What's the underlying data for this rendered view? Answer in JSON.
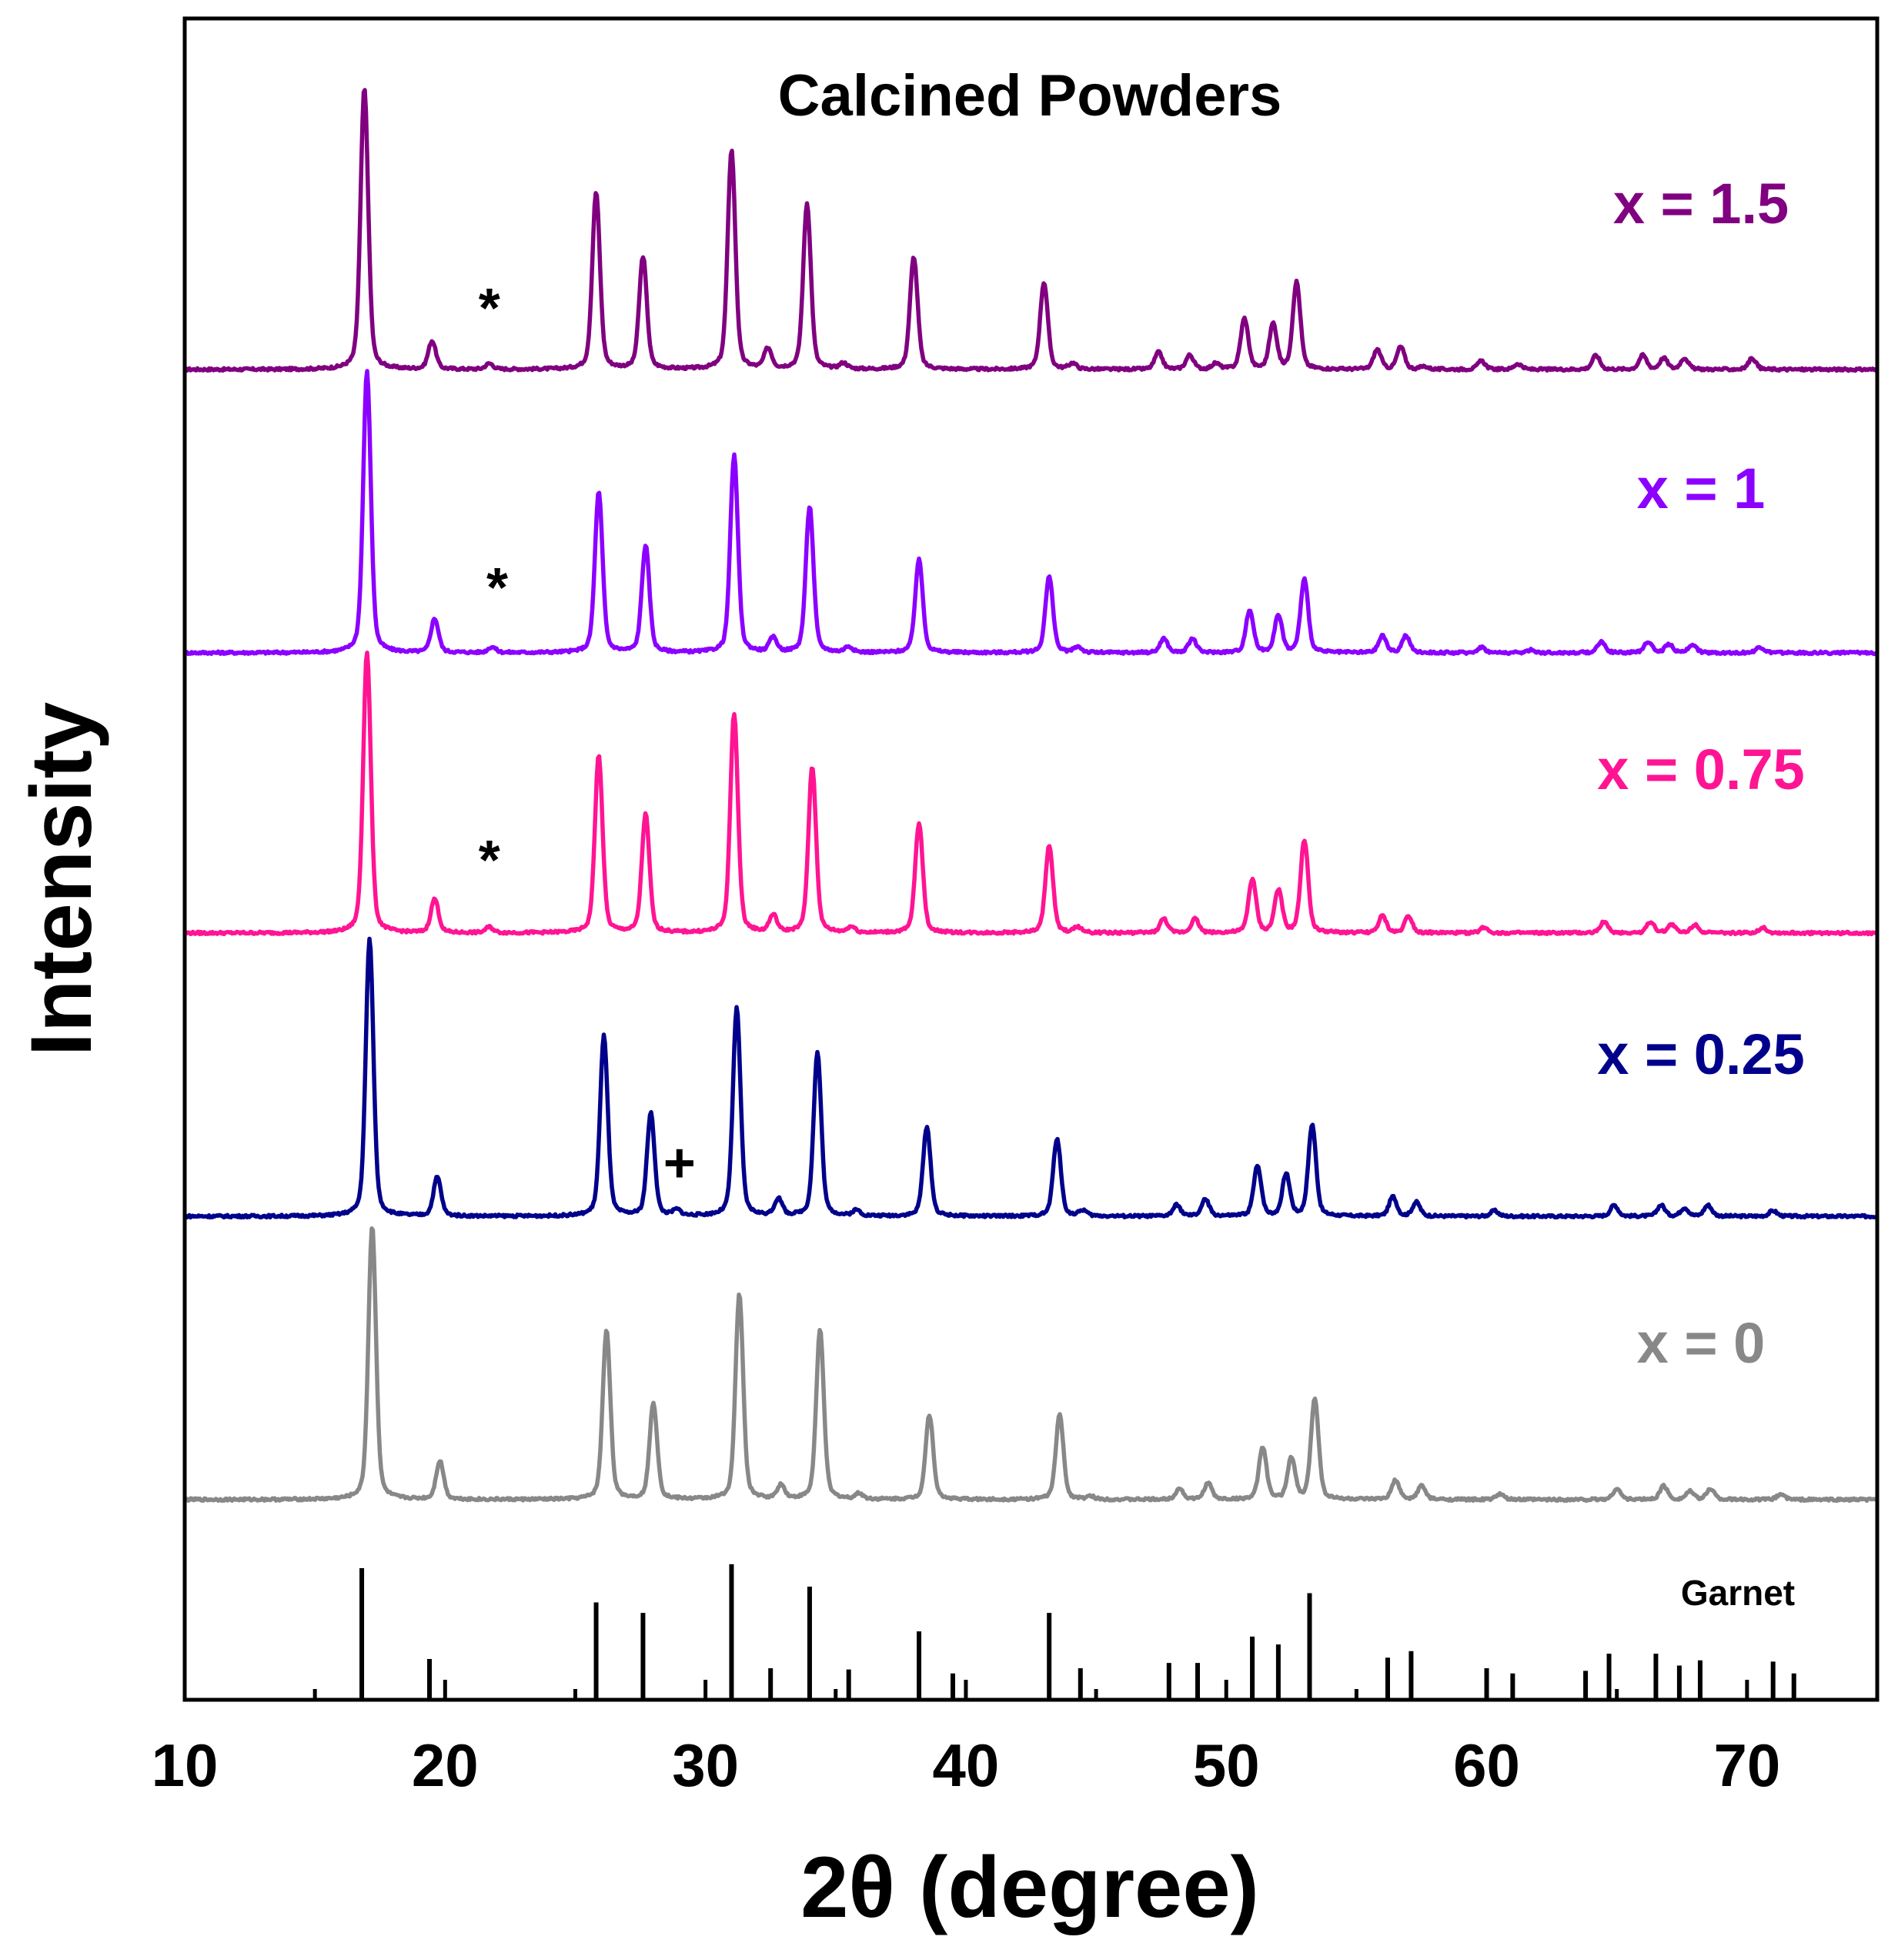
{
  "chart_data": {
    "type": "line",
    "title": "Calcined Powders",
    "xlabel": "2θ  (degree)",
    "ylabel": "Intensity",
    "xlim": [
      10,
      75
    ],
    "x_ticks": [
      10,
      20,
      30,
      40,
      50,
      60,
      70
    ],
    "x_minor_ticks": [
      15,
      25,
      35,
      45,
      55,
      65,
      75
    ],
    "series": [
      {
        "name": "x = 1.5",
        "color": "#800080",
        "marker": "*",
        "marker_x": 21.7,
        "peaks": [
          [
            16.9,
            100
          ],
          [
            19.5,
            10
          ],
          [
            21.7,
            2
          ],
          [
            25.8,
            63
          ],
          [
            27.6,
            40
          ],
          [
            31.0,
            78
          ],
          [
            32.4,
            7
          ],
          [
            33.9,
            59
          ],
          [
            35.3,
            2
          ],
          [
            38.0,
            40
          ],
          [
            43.0,
            31
          ],
          [
            44.1,
            2
          ],
          [
            47.4,
            6
          ],
          [
            48.6,
            5
          ],
          [
            49.6,
            2
          ],
          [
            50.7,
            18
          ],
          [
            51.8,
            16
          ],
          [
            52.7,
            31
          ],
          [
            55.8,
            7
          ],
          [
            56.7,
            8
          ],
          [
            57.6,
            1
          ],
          [
            59.8,
            3
          ],
          [
            61.2,
            2
          ],
          [
            64.2,
            5
          ],
          [
            66.0,
            5
          ],
          [
            66.8,
            4
          ],
          [
            67.6,
            4
          ],
          [
            70.2,
            4
          ]
        ]
      },
      {
        "name": "x = 1",
        "color": "#8B00FF",
        "marker": "*",
        "marker_x": 22.0,
        "peaks": [
          [
            17.0,
            100
          ],
          [
            19.6,
            12
          ],
          [
            21.8,
            2
          ],
          [
            25.9,
            57
          ],
          [
            27.7,
            38
          ],
          [
            31.1,
            70
          ],
          [
            32.6,
            5
          ],
          [
            34.0,
            52
          ],
          [
            35.5,
            2
          ],
          [
            38.2,
            33
          ],
          [
            43.2,
            27
          ],
          [
            44.3,
            2
          ],
          [
            47.6,
            5
          ],
          [
            48.7,
            5
          ],
          [
            50.9,
            15
          ],
          [
            52.0,
            13
          ],
          [
            53.0,
            26
          ],
          [
            56.0,
            6
          ],
          [
            56.9,
            6
          ],
          [
            59.8,
            2
          ],
          [
            61.7,
            1
          ],
          [
            64.4,
            4
          ],
          [
            66.2,
            4
          ],
          [
            67.0,
            3
          ],
          [
            67.9,
            3
          ],
          [
            70.5,
            2
          ]
        ]
      },
      {
        "name": "x = 0.75",
        "color": "#FF1493",
        "marker": "*",
        "marker_x": 21.7,
        "peaks": [
          [
            17.0,
            100
          ],
          [
            19.6,
            12
          ],
          [
            21.7,
            2
          ],
          [
            25.9,
            63
          ],
          [
            27.7,
            42
          ],
          [
            31.1,
            78
          ],
          [
            32.6,
            6
          ],
          [
            34.1,
            59
          ],
          [
            35.6,
            2
          ],
          [
            38.2,
            39
          ],
          [
            43.2,
            31
          ],
          [
            44.3,
            2
          ],
          [
            47.6,
            5
          ],
          [
            48.8,
            5
          ],
          [
            51.0,
            19
          ],
          [
            52.0,
            15
          ],
          [
            53.0,
            33
          ],
          [
            56.0,
            6
          ],
          [
            57.0,
            6
          ],
          [
            59.9,
            2
          ],
          [
            64.5,
            4
          ],
          [
            66.3,
            4
          ],
          [
            67.1,
            3
          ],
          [
            68.0,
            3
          ],
          [
            70.6,
            2
          ]
        ]
      },
      {
        "name": "x = 0.25",
        "color": "#00008B",
        "marker": "+",
        "marker_x": 29.0,
        "peaks": [
          [
            17.1,
            100
          ],
          [
            19.7,
            14
          ],
          [
            26.1,
            65
          ],
          [
            27.9,
            37
          ],
          [
            28.9,
            2
          ],
          [
            31.2,
            75
          ],
          [
            32.8,
            6
          ],
          [
            34.3,
            59
          ],
          [
            35.8,
            2
          ],
          [
            38.5,
            32
          ],
          [
            43.5,
            28
          ],
          [
            44.5,
            2
          ],
          [
            48.1,
            4
          ],
          [
            49.2,
            6
          ],
          [
            51.2,
            18
          ],
          [
            52.3,
            15
          ],
          [
            53.3,
            33
          ],
          [
            56.4,
            7
          ],
          [
            57.3,
            5
          ],
          [
            60.3,
            2
          ],
          [
            64.9,
            4
          ],
          [
            66.7,
            4
          ],
          [
            67.6,
            3
          ],
          [
            68.5,
            4
          ],
          [
            71.0,
            2
          ]
        ]
      },
      {
        "name": "x = 0",
        "color": "#888888",
        "marker": "",
        "marker_x": 0,
        "peaks": [
          [
            17.2,
            100
          ],
          [
            19.8,
            14
          ],
          [
            26.2,
            62
          ],
          [
            28.0,
            35
          ],
          [
            31.3,
            75
          ],
          [
            32.9,
            5
          ],
          [
            34.4,
            62
          ],
          [
            35.9,
            2
          ],
          [
            38.6,
            31
          ],
          [
            43.6,
            31
          ],
          [
            44.8,
            1
          ],
          [
            48.2,
            4
          ],
          [
            49.3,
            6
          ],
          [
            51.4,
            19
          ],
          [
            52.5,
            15
          ],
          [
            53.4,
            37
          ],
          [
            56.5,
            7
          ],
          [
            57.5,
            5
          ],
          [
            60.5,
            2
          ],
          [
            65.0,
            4
          ],
          [
            66.8,
            5
          ],
          [
            67.8,
            3
          ],
          [
            68.6,
            4
          ],
          [
            71.3,
            2
          ]
        ]
      }
    ],
    "reference": {
      "name": "Garnet",
      "lines": [
        [
          16.8,
          100
        ],
        [
          19.4,
          31
        ],
        [
          25.8,
          74
        ],
        [
          27.6,
          66
        ],
        [
          31.0,
          103
        ],
        [
          32.5,
          24
        ],
        [
          34.0,
          86
        ],
        [
          35.5,
          23
        ],
        [
          38.2,
          52
        ],
        [
          39.5,
          20
        ],
        [
          43.2,
          66
        ],
        [
          44.4,
          24
        ],
        [
          47.8,
          28
        ],
        [
          48.9,
          28
        ],
        [
          51.0,
          48
        ],
        [
          52.0,
          42
        ],
        [
          53.2,
          81
        ],
        [
          56.2,
          32
        ],
        [
          57.1,
          37
        ],
        [
          60.0,
          24
        ],
        [
          61.0,
          20
        ],
        [
          63.8,
          22
        ],
        [
          64.7,
          35
        ],
        [
          66.5,
          35
        ],
        [
          67.4,
          26
        ],
        [
          68.2,
          30
        ],
        [
          71.0,
          29
        ],
        [
          71.8,
          20
        ]
      ]
    }
  }
}
